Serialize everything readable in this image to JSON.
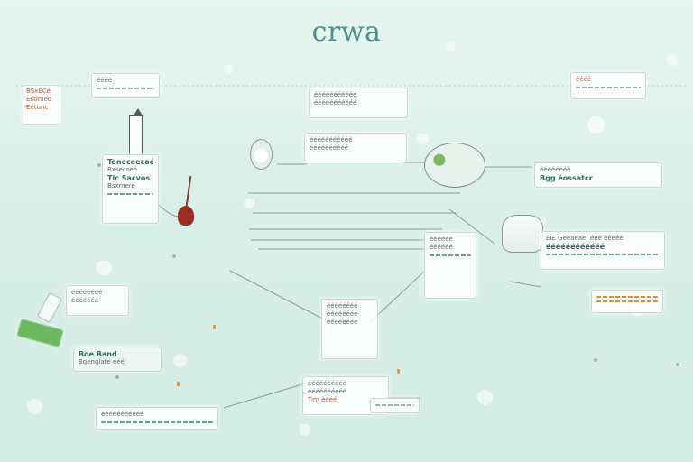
{
  "title": "crwa",
  "nodes": {
    "left_top_block": {
      "line1": "BSxECé",
      "line2": "Estimed",
      "line3": "Eétunc"
    },
    "left_top_label": "éééé",
    "tower_card": {
      "line1": "Teneceecoé",
      "line2": "Bxsecséé",
      "line3": "Tic Sacvos",
      "line4": "Bsxmere"
    },
    "center_top_card": {
      "line1": "ééééééééééé",
      "line2": "ééééééééééé"
    },
    "center_bubble": {
      "line1": "ééééééééééé",
      "line2": "éééééééééé"
    },
    "right_top_block": "éééé",
    "right_mid_card": {
      "line1": "éééééééé",
      "line2": "Bgg éossatcr"
    },
    "right_lower_card": {
      "line1": "EIE Geeaeae: ééé ééééé",
      "line2": "éééééééééééé"
    },
    "center_stack": {
      "line1": "éééééééé",
      "line2": "éééééééé",
      "line3": "éééééééé"
    },
    "left_mid_card": {
      "line1": "éééééééé",
      "line2": "ééééééé"
    },
    "left_bottom_text": {
      "line1": "Boe Band",
      "line2": "Bgenglate ééé"
    },
    "bottom_left_label": "ééééééééééé",
    "bottom_center_card": {
      "line1": "éééééééééé",
      "line2": "éééééééééé",
      "line3": "Tim éééé"
    },
    "center_right_card": {
      "line1": "éééééé",
      "line2": "éééééé"
    }
  }
}
